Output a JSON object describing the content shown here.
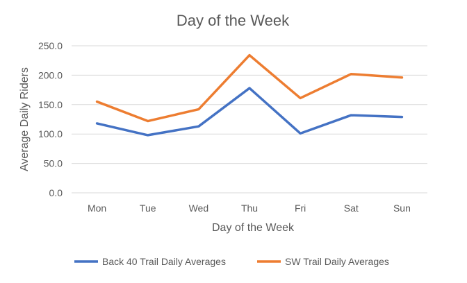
{
  "chart_data": {
    "type": "line",
    "title": "Day of the Week",
    "xlabel": "Day of the Week",
    "ylabel": "Average Daily Riders",
    "categories": [
      "Mon",
      "Tue",
      "Wed",
      "Thu",
      "Fri",
      "Sat",
      "Sun"
    ],
    "ylim": [
      0,
      250
    ],
    "yticks": [
      "0.0",
      "50.0",
      "100.0",
      "150.0",
      "200.0",
      "250.0"
    ],
    "grid": true,
    "legend_position": "bottom",
    "series": [
      {
        "name": "Back 40 Trail Daily Averages",
        "color": "#4472C4",
        "values": [
          118,
          98,
          113,
          178,
          101,
          132,
          129
        ]
      },
      {
        "name": "SW Trail Daily Averages",
        "color": "#ED7D31",
        "values": [
          155,
          122,
          142,
          234,
          161,
          202,
          196
        ]
      }
    ]
  }
}
